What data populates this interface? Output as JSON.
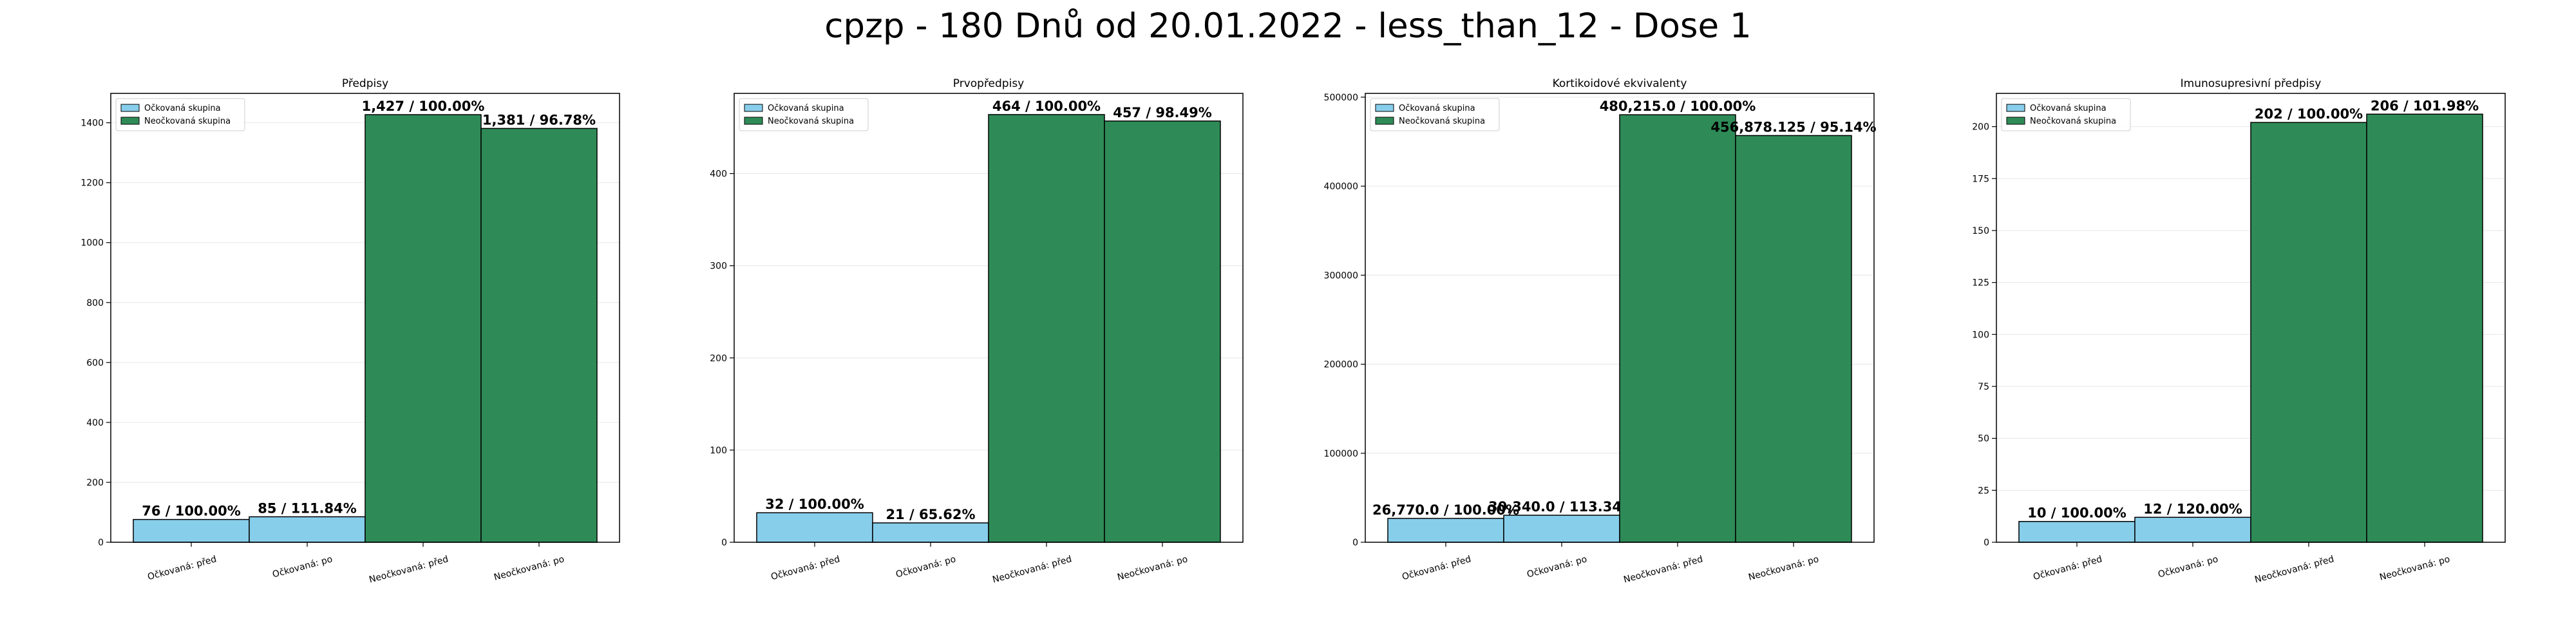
{
  "suptitle": "cpzp - 180 Dnů od 20.01.2022 - less_than_12 - Dose 1",
  "colors": {
    "vaccinated": "#87ceeb",
    "unvaccinated": "#2e8b57",
    "grid": "#e6e6e6",
    "edge": "#000000"
  },
  "chart_data": [
    {
      "type": "bar",
      "title": "Předpisy",
      "categories": [
        "Očkovaná: před",
        "Očkovaná: po",
        "Neočkovaná: před",
        "Neočkovaná: po"
      ],
      "values": [
        76,
        85,
        1427,
        1381
      ],
      "groups": [
        "vaccinated",
        "vaccinated",
        "unvaccinated",
        "unvaccinated"
      ],
      "bar_labels": [
        "76 / 100.00%",
        "85 / 111.84%",
        "1,427 / 100.00%",
        "1,381 / 96.78%"
      ],
      "ylim": [
        0,
        1498
      ],
      "yticks": [
        0,
        200,
        400,
        600,
        800,
        1000,
        1200,
        1400
      ],
      "ytick_labels": [
        "0",
        "200",
        "400",
        "600",
        "800",
        "1000",
        "1200",
        "1400"
      ],
      "legend": [
        "Očkovaná skupina",
        "Neočkovaná skupina"
      ],
      "legend_position": "top-left",
      "grid": "y"
    },
    {
      "type": "bar",
      "title": "Prvopředpisy",
      "categories": [
        "Očkovaná: před",
        "Očkovaná: po",
        "Neočkovaná: před",
        "Neočkovaná: po"
      ],
      "values": [
        32,
        21,
        464,
        457
      ],
      "groups": [
        "vaccinated",
        "vaccinated",
        "unvaccinated",
        "unvaccinated"
      ],
      "bar_labels": [
        "32 / 100.00%",
        "21 / 65.62%",
        "464 / 100.00%",
        "457 / 98.49%"
      ],
      "ylim": [
        0,
        487
      ],
      "yticks": [
        0,
        100,
        200,
        300,
        400
      ],
      "ytick_labels": [
        "0",
        "100",
        "200",
        "300",
        "400"
      ],
      "legend": [
        "Očkovaná skupina",
        "Neočkovaná skupina"
      ],
      "legend_position": "top-left",
      "grid": "y"
    },
    {
      "type": "bar",
      "title": "Kortikoidové ekvivalenty",
      "categories": [
        "Očkovaná: před",
        "Očkovaná: po",
        "Neočkovaná: před",
        "Neočkovaná: po"
      ],
      "values": [
        26770.0,
        30340.0,
        480215.0,
        456878.125
      ],
      "groups": [
        "vaccinated",
        "vaccinated",
        "unvaccinated",
        "unvaccinated"
      ],
      "bar_labels": [
        "26,770.0 / 100.00%",
        "30,340.0 / 113.34%",
        "480,215.0 / 100.00%",
        "456,878.125 / 95.14%"
      ],
      "ylim": [
        0,
        504226
      ],
      "yticks": [
        0,
        100000,
        200000,
        300000,
        400000,
        500000
      ],
      "ytick_labels": [
        "0",
        "100000",
        "200000",
        "300000",
        "400000",
        "500000"
      ],
      "legend": [
        "Očkovaná skupina",
        "Neočkovaná skupina"
      ],
      "legend_position": "top-left",
      "grid": "y"
    },
    {
      "type": "bar",
      "title": "Imunosupresivní předpisy",
      "categories": [
        "Očkovaná: před",
        "Očkovaná: po",
        "Neočkovaná: před",
        "Neočkovaná: po"
      ],
      "values": [
        10,
        12,
        202,
        206
      ],
      "groups": [
        "vaccinated",
        "vaccinated",
        "unvaccinated",
        "unvaccinated"
      ],
      "bar_labels": [
        "10 / 100.00%",
        "12 / 120.00%",
        "202 / 100.00%",
        "206 / 101.98%"
      ],
      "ylim": [
        0,
        216
      ],
      "yticks": [
        0,
        25,
        50,
        75,
        100,
        125,
        150,
        175,
        200
      ],
      "ytick_labels": [
        "0",
        "25",
        "50",
        "75",
        "100",
        "125",
        "150",
        "175",
        "200"
      ],
      "legend": [
        "Očkovaná skupina",
        "Neočkovaná skupina"
      ],
      "legend_position": "top-left",
      "grid": "y"
    }
  ]
}
